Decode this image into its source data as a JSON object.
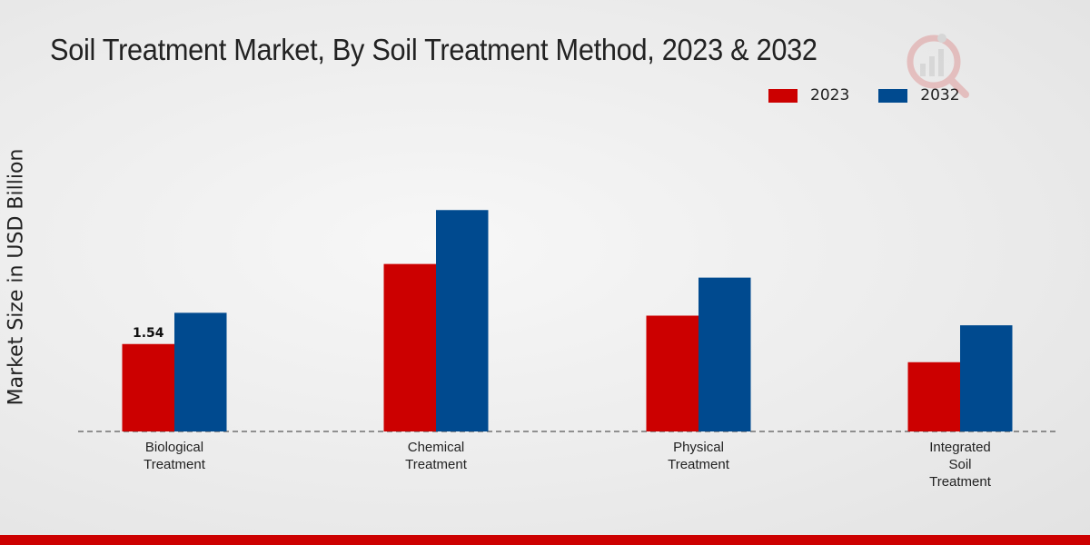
{
  "chart_data": {
    "type": "bar",
    "title": "Soil Treatment Market, By Soil Treatment Method, 2023 & 2032",
    "xlabel": "",
    "ylabel": "Market Size in USD Billion",
    "categories": [
      [
        "Biological",
        "Treatment"
      ],
      [
        "Chemical",
        "Treatment"
      ],
      [
        "Physical",
        "Treatment"
      ],
      [
        "Integrated",
        "Soil",
        "Treatment"
      ]
    ],
    "series": [
      {
        "name": "2023",
        "color": "#cc0000",
        "values": [
          1.54,
          2.95,
          2.04,
          1.22
        ]
      },
      {
        "name": "2032",
        "color": "#004a8f",
        "values": [
          2.09,
          3.9,
          2.71,
          1.87
        ]
      }
    ],
    "data_labels": [
      {
        "series": 0,
        "index": 0,
        "text": "1.54"
      }
    ],
    "ylim": [
      0,
      6.0
    ],
    "grid": false,
    "legend": "top-right"
  },
  "footer": {
    "accent_color": "#cc0000"
  },
  "watermark": {
    "icon": "brand-logo-icon"
  }
}
